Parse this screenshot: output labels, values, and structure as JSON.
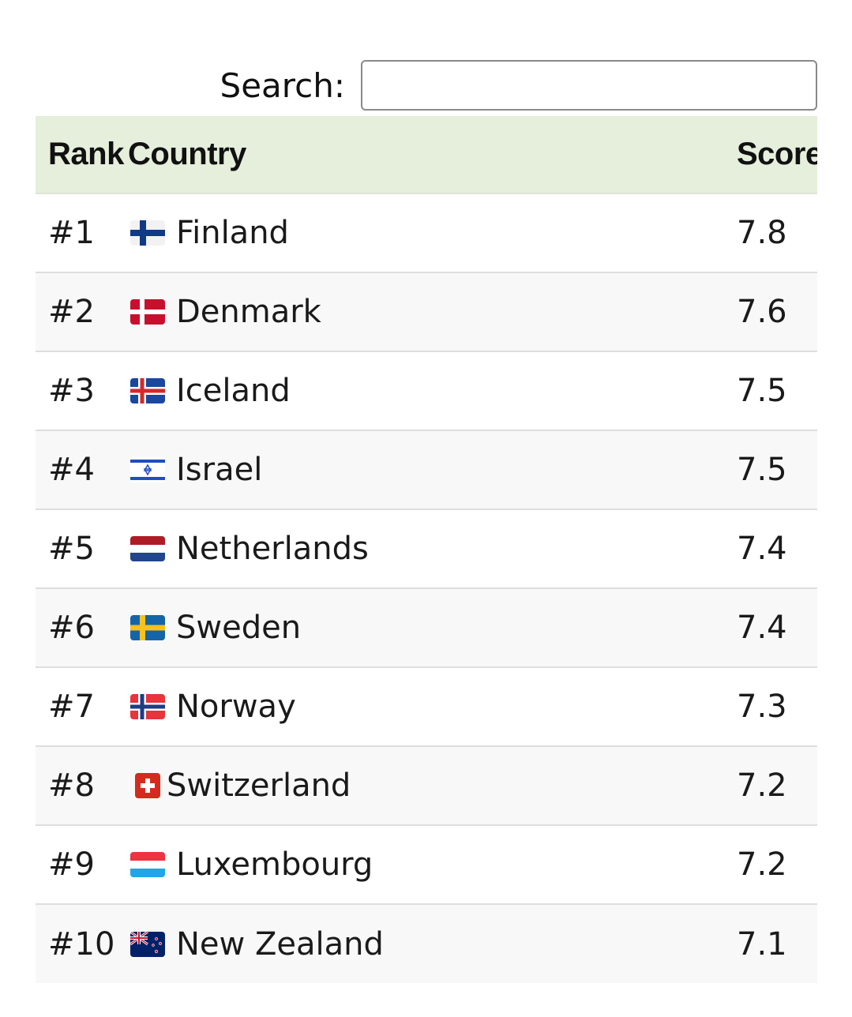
{
  "search": {
    "label": "Search:",
    "value": "",
    "placeholder": ""
  },
  "table": {
    "headers": {
      "rank": "Rank",
      "country": "Country",
      "score": "Score"
    },
    "rows": [
      {
        "rank": "#1",
        "country": "Finland",
        "flag": "finland-flag-icon",
        "score": "7.8"
      },
      {
        "rank": "#2",
        "country": "Denmark",
        "flag": "denmark-flag-icon",
        "score": "7.6"
      },
      {
        "rank": "#3",
        "country": "Iceland",
        "flag": "iceland-flag-icon",
        "score": "7.5"
      },
      {
        "rank": "#4",
        "country": "Israel",
        "flag": "israel-flag-icon",
        "score": "7.5"
      },
      {
        "rank": "#5",
        "country": "Netherlands",
        "flag": "netherlands-flag-icon",
        "score": "7.4"
      },
      {
        "rank": "#6",
        "country": "Sweden",
        "flag": "sweden-flag-icon",
        "score": "7.4"
      },
      {
        "rank": "#7",
        "country": "Norway",
        "flag": "norway-flag-icon",
        "score": "7.3"
      },
      {
        "rank": "#8",
        "country": "Switzerland",
        "flag": "switzerland-flag-icon",
        "score": "7.2"
      },
      {
        "rank": "#9",
        "country": "Luxembourg",
        "flag": "luxembourg-flag-icon",
        "score": "7.2"
      },
      {
        "rank": "#10",
        "country": "New Zealand",
        "flag": "new-zealand-flag-icon",
        "score": "7.1"
      }
    ]
  },
  "colors": {
    "header_bg": "#e5efdc",
    "row_alt_bg": "#f8f8f8",
    "divider": "#dedede"
  }
}
